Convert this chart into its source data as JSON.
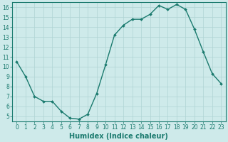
{
  "x": [
    0,
    1,
    2,
    3,
    4,
    5,
    6,
    7,
    8,
    9,
    10,
    11,
    12,
    13,
    14,
    15,
    16,
    17,
    18,
    19,
    20,
    21,
    22,
    23
  ],
  "y": [
    10.5,
    9.0,
    7.0,
    6.5,
    6.5,
    5.5,
    4.8,
    4.7,
    5.2,
    7.3,
    10.2,
    13.2,
    14.2,
    14.8,
    14.8,
    15.3,
    16.2,
    15.8,
    16.3,
    15.8,
    13.8,
    11.5,
    9.3,
    8.3
  ],
  "line_color": "#1a7a6e",
  "marker": "D",
  "marker_size": 2.0,
  "bg_color": "#ceeaea",
  "grid_color": "#afd4d4",
  "xlabel": "Humidex (Indice chaleur)",
  "ylim": [
    4.5,
    16.5
  ],
  "xlim": [
    -0.5,
    23.5
  ],
  "yticks": [
    5,
    6,
    7,
    8,
    9,
    10,
    11,
    12,
    13,
    14,
    15,
    16
  ],
  "xticks": [
    0,
    1,
    2,
    3,
    4,
    5,
    6,
    7,
    8,
    9,
    10,
    11,
    12,
    13,
    14,
    15,
    16,
    17,
    18,
    19,
    20,
    21,
    22,
    23
  ],
  "tick_color": "#1a7a6e",
  "label_fontsize": 5.5,
  "xlabel_fontsize": 7.0,
  "linewidth": 1.0
}
